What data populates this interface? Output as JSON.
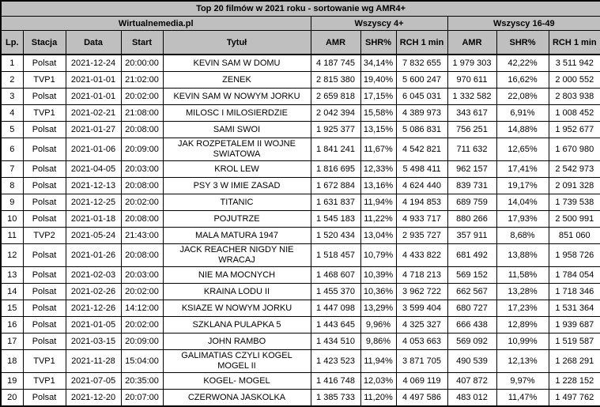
{
  "colors": {
    "header_bg": "#bfbfbf",
    "body_bg": "#ffffff",
    "border": "#000000",
    "text": "#000000"
  },
  "chart_data": {
    "type": "table",
    "title": "Top 20 filmów w 2021 roku - sortowanie wg AMR4+",
    "column_groups": [
      {
        "label": "Wirtualnemedia.pl",
        "span": 5
      },
      {
        "label": "Wszyscy 4+",
        "span": 3
      },
      {
        "label": "Wszyscy 16-49",
        "span": 3
      }
    ],
    "columns": [
      "Lp.",
      "Stacja",
      "Data",
      "Start",
      "Tytuł",
      "AMR",
      "SHR%",
      "RCH 1 min",
      "AMR",
      "SHR%",
      "RCH 1 min"
    ],
    "rows": [
      [
        "1",
        "Polsat",
        "2021-12-24",
        "20:00:00",
        "KEVIN SAM W DOMU",
        "4 187 745",
        "34,14%",
        "7 832 655",
        "1 979 303",
        "42,22%",
        "3 511 942"
      ],
      [
        "2",
        "TVP1",
        "2021-01-01",
        "21:02:00",
        "ZENEK",
        "2 815 380",
        "19,40%",
        "5 600 247",
        "970 611",
        "16,62%",
        "2 000 552"
      ],
      [
        "3",
        "Polsat",
        "2021-01-01",
        "20:02:00",
        "KEVIN SAM W NOWYM JORKU",
        "2 659 818",
        "17,15%",
        "6 045 031",
        "1 332 582",
        "22,08%",
        "2 803 938"
      ],
      [
        "4",
        "TVP1",
        "2021-02-21",
        "21:08:00",
        "MILOSC I MILOSIERDZIE",
        "2 042 394",
        "15,58%",
        "4 389 973",
        "343 617",
        "6,91%",
        "1 008 452"
      ],
      [
        "5",
        "Polsat",
        "2021-01-27",
        "20:08:00",
        "SAMI SWOI",
        "1 925 377",
        "13,15%",
        "5 086 831",
        "756 251",
        "14,88%",
        "1 952 677"
      ],
      [
        "6",
        "Polsat",
        "2021-01-06",
        "20:09:00",
        "JAK ROZPETALEM II WOJNE SWIATOWA",
        "1 841 241",
        "11,67%",
        "4 542 821",
        "711 632",
        "12,65%",
        "1 670 980"
      ],
      [
        "7",
        "Polsat",
        "2021-04-05",
        "20:03:00",
        "KROL LEW",
        "1 816 695",
        "12,33%",
        "5 498 411",
        "962 157",
        "17,41%",
        "2 542 973"
      ],
      [
        "8",
        "Polsat",
        "2021-12-13",
        "20:08:00",
        "PSY 3 W IMIE ZASAD",
        "1 672 884",
        "13,16%",
        "4 624 440",
        "839 731",
        "19,17%",
        "2 091 328"
      ],
      [
        "9",
        "Polsat",
        "2021-12-25",
        "20:02:00",
        "TITANIC",
        "1 631 837",
        "11,94%",
        "4 194 853",
        "689 759",
        "14,04%",
        "1 739 538"
      ],
      [
        "10",
        "Polsat",
        "2021-01-18",
        "20:08:00",
        "POJUTRZE",
        "1 545 183",
        "11,22%",
        "4 933 717",
        "880 266",
        "17,93%",
        "2 500 991"
      ],
      [
        "11",
        "TVP2",
        "2021-05-24",
        "21:43:00",
        "MALA MATURA 1947",
        "1 520 434",
        "13,04%",
        "2 935 727",
        "357 911",
        "8,68%",
        "851 060"
      ],
      [
        "12",
        "Polsat",
        "2021-01-26",
        "20:08:00",
        "JACK REACHER NIGDY NIE WRACAJ",
        "1 518 457",
        "10,79%",
        "4 433 822",
        "681 492",
        "13,88%",
        "1 958 726"
      ],
      [
        "13",
        "Polsat",
        "2021-02-03",
        "20:03:00",
        "NIE MA MOCNYCH",
        "1 468 607",
        "10,39%",
        "4 718 213",
        "569 152",
        "11,58%",
        "1 784 054"
      ],
      [
        "14",
        "Polsat",
        "2021-02-26",
        "20:02:00",
        "KRAINA LODU II",
        "1 455 370",
        "10,36%",
        "3 962 722",
        "662 567",
        "13,28%",
        "1 718 346"
      ],
      [
        "15",
        "Polsat",
        "2021-12-26",
        "14:12:00",
        "KSIAZE W NOWYM JORKU",
        "1 447 098",
        "13,29%",
        "3 599 404",
        "680 727",
        "17,23%",
        "1 531 364"
      ],
      [
        "16",
        "Polsat",
        "2021-01-05",
        "20:02:00",
        "SZKLANA PULAPKA 5",
        "1 443 645",
        "9,96%",
        "4 325 327",
        "666 438",
        "12,89%",
        "1 939 687"
      ],
      [
        "17",
        "Polsat",
        "2021-03-15",
        "20:09:00",
        "JOHN RAMBO",
        "1 434 510",
        "9,86%",
        "4 053 663",
        "569 092",
        "10,99%",
        "1 519 587"
      ],
      [
        "18",
        "TVP1",
        "2021-11-28",
        "15:04:00",
        "GALIMATIAS CZYLI KOGEL MOGEL II",
        "1 423 523",
        "11,94%",
        "3 871 705",
        "490 539",
        "12,13%",
        "1 268 291"
      ],
      [
        "19",
        "TVP1",
        "2021-07-05",
        "20:35:00",
        "KOGEL- MOGEL",
        "1 416 748",
        "12,03%",
        "4 069 119",
        "407 872",
        "9,97%",
        "1 228 152"
      ],
      [
        "20",
        "Polsat",
        "2021-12-20",
        "20:07:00",
        "CZERWONA JASKOLKA",
        "1 385 733",
        "11,20%",
        "4 497 586",
        "483 012",
        "11,47%",
        "1 497 762"
      ]
    ]
  }
}
